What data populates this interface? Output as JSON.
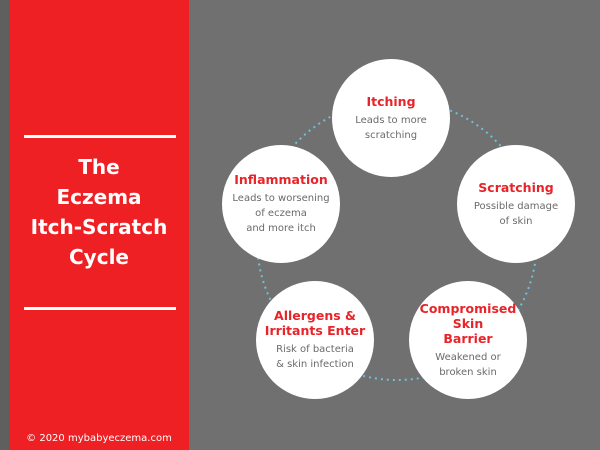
{
  "title_lines": [
    "The",
    "Eczema",
    "Itch-Scratch",
    "Cycle"
  ],
  "copyright": "© 2020 mybabyeczema.com",
  "colors": {
    "accent": "#ee2024",
    "title_text": "#e8242a",
    "background": "#707070",
    "connector": "#6fc0d8"
  },
  "nodes": [
    {
      "title": "Itching",
      "description": "Leads to more\nscratching"
    },
    {
      "title": "Scratching",
      "description": "Possible damage\nof skin"
    },
    {
      "title": "Compromised\nSkin\nBarrier",
      "description": "Weakened or\nbroken skin"
    },
    {
      "title": "Allergens &\nIrritants Enter",
      "description": "Risk of bacteria\n& skin infection"
    },
    {
      "title": "Inflammation",
      "description": "Leads to worsening\nof eczema\nand more itch"
    }
  ]
}
